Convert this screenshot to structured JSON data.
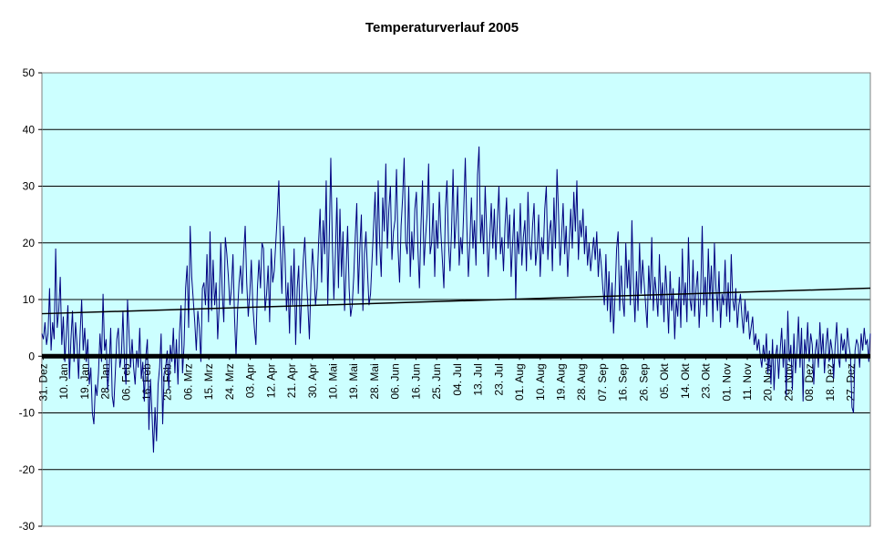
{
  "chart_data": {
    "type": "line",
    "title": "Temperaturverlauf 2005",
    "xlabel": "",
    "ylabel": "",
    "ylim": [
      -30,
      50
    ],
    "yticks": [
      50,
      40,
      30,
      20,
      10,
      0,
      -10,
      -20,
      -30
    ],
    "grid": true,
    "legend": "none",
    "colors": {
      "plot_background": "#ccffff",
      "series": "#000080",
      "trend": "#000000",
      "zero_line": "#000000",
      "grid": "#000000"
    },
    "x_tick_labels": [
      "31. Dez",
      "10. Jan",
      "19. Jan",
      "28. Jan",
      "06. Feb",
      "16. Feb",
      "25. Feb",
      "06. Mrz",
      "15. Mrz",
      "24. Mrz",
      "03. Apr",
      "12. Apr",
      "21. Apr",
      "30. Apr",
      "10. Mai",
      "19. Mai",
      "28. Mai",
      "06. Jun",
      "16. Jun",
      "25. Jun",
      "04. Jul",
      "13. Jul",
      "23. Jul",
      "01. Aug",
      "10. Aug",
      "19. Aug",
      "28. Aug",
      "07. Sep",
      "16. Sep",
      "26. Sep",
      "05. Okt",
      "14. Okt",
      "23. Okt",
      "01. Nov",
      "11. Nov",
      "20. Nov",
      "29. Nov",
      "08. Dez",
      "18. Dez",
      "27. Dez"
    ],
    "series": [
      {
        "x_start": "2004-12-31",
        "x_end": "2005-12-31",
        "values": [
          4,
          3,
          6,
          2,
          4,
          12,
          1,
          6,
          3,
          19,
          5,
          8,
          14,
          2,
          7,
          -1,
          4,
          9,
          -4,
          3,
          8,
          -1,
          6,
          2,
          -4,
          4,
          10,
          1,
          5,
          -1,
          3,
          -5,
          -2,
          -10,
          -12,
          -5,
          -7,
          -3,
          4,
          -1,
          11,
          1,
          3,
          -6,
          -2,
          5,
          -7,
          -9,
          -3,
          3,
          5,
          -2,
          0,
          8,
          -1,
          -5,
          10,
          4,
          -2,
          3,
          -2,
          -5,
          1,
          -2,
          5,
          -4,
          -1,
          -8,
          0,
          3,
          -13,
          -4,
          -10,
          -17,
          -9,
          -15,
          -5,
          -2,
          4,
          -12,
          -3,
          -2,
          1,
          -6,
          2,
          -1,
          5,
          -3,
          3,
          -5,
          4,
          9,
          -3,
          2,
          12,
          16,
          5,
          23,
          14,
          10,
          6,
          1,
          8,
          5,
          -1,
          12,
          13,
          9,
          18,
          6,
          22,
          8,
          17,
          9,
          13,
          3,
          9,
          20,
          11,
          6,
          21,
          18,
          14,
          9,
          12,
          18,
          7,
          0,
          8,
          13,
          16,
          11,
          18,
          23,
          13,
          7,
          11,
          17,
          9,
          5,
          2,
          12,
          17,
          12,
          20,
          19,
          8,
          11,
          16,
          6,
          19,
          13,
          15,
          20,
          25,
          31,
          19,
          11,
          23,
          18,
          8,
          13,
          4,
          16,
          9,
          19,
          2,
          12,
          16,
          4,
          11,
          17,
          21,
          14,
          9,
          3,
          13,
          19,
          15,
          9,
          12,
          20,
          26,
          13,
          24,
          18,
          31,
          9,
          21,
          35,
          20,
          10,
          18,
          28,
          12,
          26,
          14,
          22,
          8,
          15,
          23,
          12,
          7,
          9,
          14,
          21,
          27,
          11,
          19,
          25,
          8,
          18,
          22,
          15,
          9,
          11,
          17,
          23,
          29,
          16,
          31,
          20,
          14,
          28,
          22,
          34,
          19,
          26,
          30,
          17,
          22,
          24,
          33,
          19,
          13,
          23,
          28,
          35,
          20,
          18,
          30,
          14,
          22,
          17,
          26,
          29,
          19,
          12,
          23,
          31,
          16,
          21,
          25,
          34,
          18,
          20,
          27,
          14,
          24,
          19,
          29,
          22,
          17,
          12,
          26,
          31,
          20,
          15,
          22,
          33,
          19,
          24,
          30,
          16,
          21,
          18,
          26,
          35,
          23,
          14,
          20,
          28,
          19,
          24,
          16,
          32,
          37,
          20,
          25,
          18,
          30,
          22,
          14,
          21,
          27,
          19,
          26,
          17,
          24,
          30,
          18,
          21,
          15,
          23,
          28,
          19,
          25,
          14,
          20,
          26,
          10,
          22,
          18,
          27,
          16,
          21,
          24,
          15,
          29,
          20,
          17,
          23,
          27,
          16,
          19,
          25,
          14,
          21,
          18,
          26,
          30,
          17,
          22,
          24,
          15,
          28,
          19,
          33,
          25,
          16,
          21,
          27,
          18,
          23,
          14,
          20,
          26,
          19,
          29,
          22,
          31,
          17,
          24,
          21,
          26,
          18,
          23,
          16,
          20,
          15,
          18,
          21,
          17,
          22,
          14,
          19,
          16,
          12,
          9,
          18,
          8,
          15,
          6,
          13,
          4,
          11,
          19,
          22,
          8,
          16,
          10,
          7,
          20,
          12,
          17,
          9,
          24,
          13,
          6,
          15,
          8,
          20,
          11,
          17,
          13,
          9,
          5,
          16,
          10,
          21,
          8,
          14,
          11,
          7,
          18,
          9,
          13,
          6,
          16,
          11,
          4,
          15,
          8,
          12,
          3,
          10,
          7,
          14,
          5,
          19,
          9,
          13,
          6,
          21,
          10,
          8,
          17,
          7,
          12,
          15,
          5,
          11,
          23,
          9,
          14,
          7,
          19,
          10,
          16,
          6,
          20,
          12,
          8,
          15,
          5,
          11,
          9,
          17,
          7,
          13,
          6,
          18,
          10,
          8,
          12,
          5,
          9,
          11,
          7,
          4,
          10,
          6,
          8,
          3,
          5,
          7,
          2,
          4,
          1,
          3,
          0,
          -2,
          2,
          -1,
          4,
          -3,
          1,
          -5,
          3,
          -6,
          0,
          2,
          -4,
          1,
          5,
          -2,
          3,
          -7,
          8,
          -1,
          2,
          -6,
          4,
          -3,
          1,
          7,
          -2,
          5,
          -8,
          3,
          0,
          6,
          -1,
          4,
          2,
          -5,
          1,
          3,
          -2,
          6,
          0,
          4,
          -3,
          2,
          5,
          -1,
          3,
          1,
          -4,
          2,
          6,
          0,
          -2,
          4,
          1,
          3,
          -1,
          5,
          2,
          0,
          -9,
          -10,
          1,
          3,
          2,
          -2,
          4,
          1,
          5,
          2,
          3,
          -1,
          4
        ]
      },
      {
        "name": "",
        "kind": "trend",
        "x": [
          "2004-12-31",
          "2005-12-31"
        ],
        "values": [
          7.5,
          12
        ]
      }
    ]
  }
}
